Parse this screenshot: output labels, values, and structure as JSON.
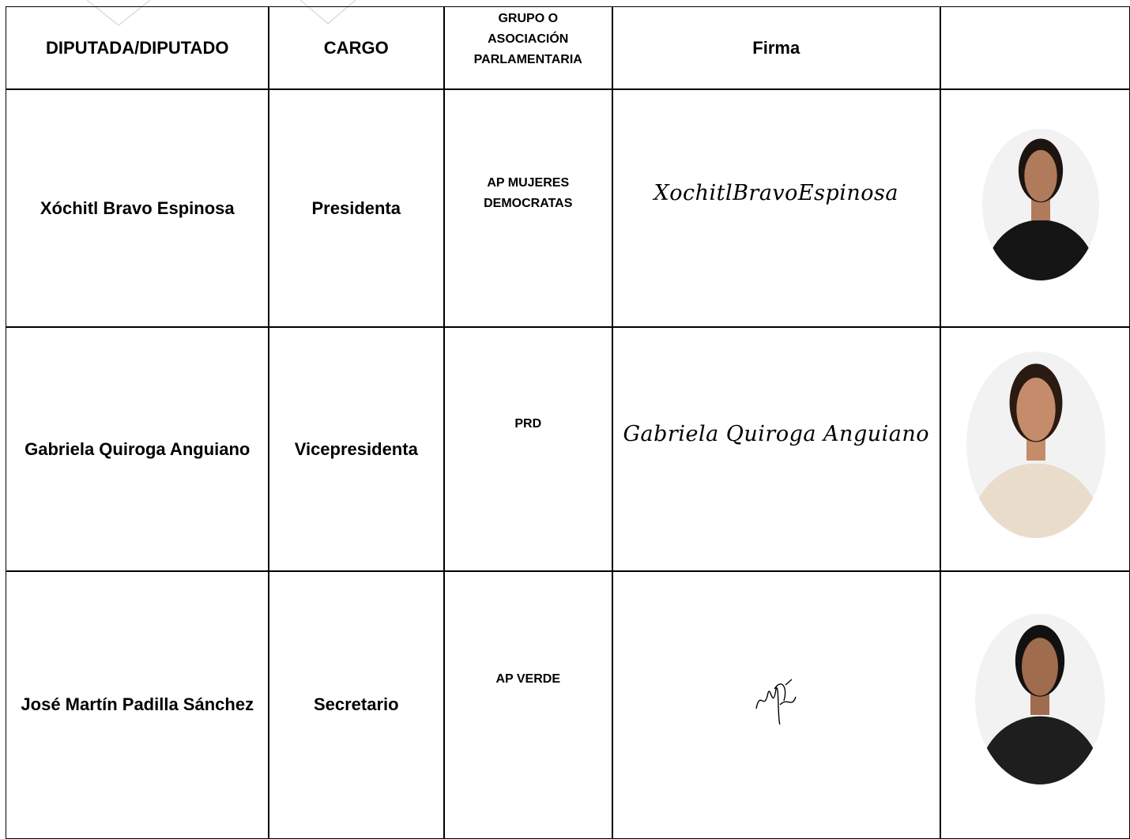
{
  "table": {
    "header": [
      "DIPUTADA/DIPUTADO",
      "CARGO",
      "GRUPO O ASOCIACIÓN PARLAMENTARIA",
      "Firma"
    ],
    "rows": [
      [
        "Xóchitl Bravo Espinosa",
        "Presidenta",
        "AP MUJERES DEMOCRATAS",
        "XochitlBravoEspinosa"
      ],
      [
        "Gabriela Quiroga Anguiano",
        "Vicepresidenta",
        "PRD",
        "Gabriela Quiroga Anguiano"
      ],
      [
        "José Martín Padilla Sánchez",
        "Secretario",
        "AP VERDE"
      ]
    ]
  }
}
